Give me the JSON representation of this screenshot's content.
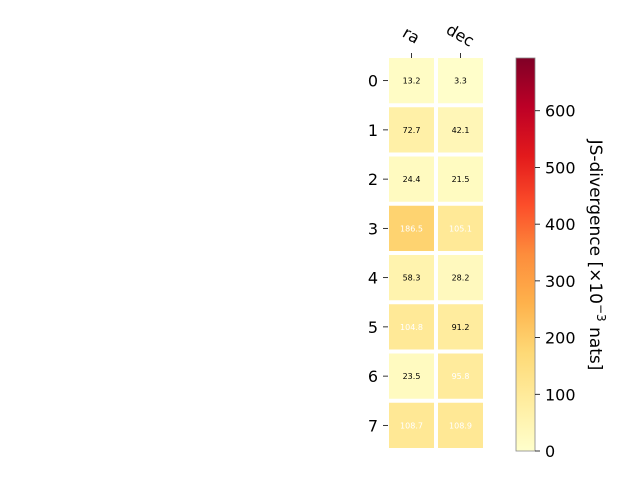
{
  "chart_data": {
    "type": "heatmap",
    "columns": [
      "ra",
      "dec"
    ],
    "rows": [
      "0",
      "1",
      "2",
      "3",
      "4",
      "5",
      "6",
      "7"
    ],
    "values": [
      [
        13.2,
        3.3
      ],
      [
        72.7,
        42.1
      ],
      [
        24.4,
        21.5
      ],
      [
        186.5,
        105.1
      ],
      [
        58.3,
        28.2
      ],
      [
        104.8,
        91.2
      ],
      [
        23.5,
        95.8
      ],
      [
        108.7,
        108.9
      ]
    ],
    "value_labels": [
      [
        "13.2",
        "3.3"
      ],
      [
        "72.7",
        "42.1"
      ],
      [
        "24.4",
        "21.5"
      ],
      [
        "186.5",
        "105.1"
      ],
      [
        "58.3",
        "28.2"
      ],
      [
        "104.8",
        "91.2"
      ],
      [
        "23.5",
        "95.8"
      ],
      [
        "108.7",
        "108.9"
      ]
    ],
    "colorbar": {
      "label": "JS-divergence [×10",
      "label_exponent": "−3",
      "label_suffix": " nats]",
      "range": [
        0,
        693
      ],
      "ticks": [
        0,
        100,
        200,
        300,
        400,
        500,
        600
      ],
      "colormap": "YlOrRd"
    },
    "grid": false
  }
}
